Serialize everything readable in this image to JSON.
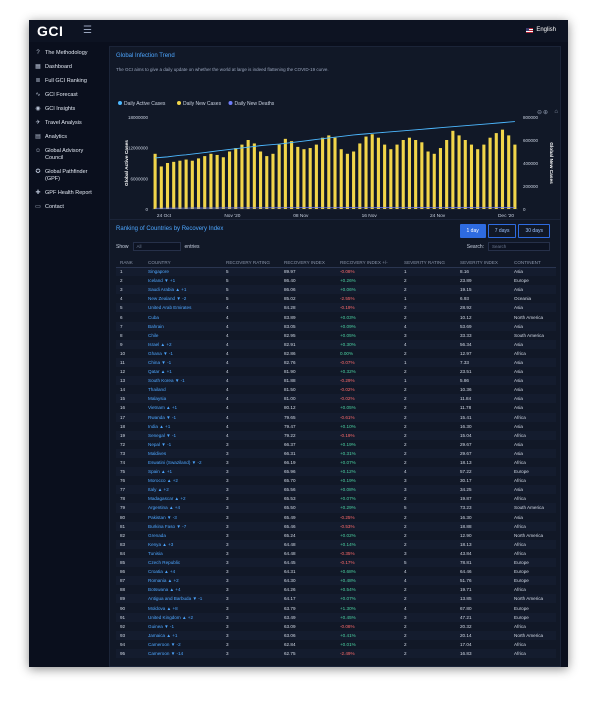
{
  "app": {
    "logo": "GCI",
    "language": "English"
  },
  "sidebar": {
    "items": [
      {
        "label": "The Methodology",
        "icon": "question-circle-icon",
        "glyph": "?"
      },
      {
        "label": "Dashboard",
        "icon": "dashboard-icon",
        "glyph": "▦"
      },
      {
        "label": "Full GCI Ranking",
        "icon": "list-icon",
        "glyph": "≣"
      },
      {
        "label": "GCI Forecast",
        "icon": "trend-icon",
        "glyph": "∿"
      },
      {
        "label": "GCI Insights",
        "icon": "eye-icon",
        "glyph": "◉"
      },
      {
        "label": "Travel Analysis",
        "icon": "plane-icon",
        "glyph": "✈"
      },
      {
        "label": "Analytics",
        "icon": "chart-icon",
        "glyph": "▤"
      },
      {
        "label": "Global Advisory Council",
        "icon": "users-icon",
        "glyph": "☺"
      },
      {
        "label": "Global Pathfinder (GPF)",
        "icon": "compass-icon",
        "glyph": "✪"
      },
      {
        "label": "GPF Health Report",
        "icon": "health-icon",
        "glyph": "✚"
      },
      {
        "label": "Contact",
        "icon": "chat-icon",
        "glyph": "▭"
      }
    ]
  },
  "trend": {
    "title": "Global Infection Trend",
    "subtitle": "The GCI aims to give a daily update on whether the world at large is indeed flattening the COVID-19 curve."
  },
  "chart_data": {
    "type": "bar",
    "title": "Global Infection Trend",
    "xlabel": "Date",
    "ylabel_left": "Global Active Cases",
    "ylabel_right": "Global New Cases",
    "x_ticks": [
      "24 Oct",
      "Nov '20",
      "08 Nov",
      "16 Nov",
      "24 Nov",
      "Dec '20"
    ],
    "y_left_ticks": [
      "18000000",
      "12000000",
      "6000000",
      "0"
    ],
    "y_right_ticks": [
      "800000",
      "600000",
      "400000",
      "200000",
      "0"
    ],
    "ylim_left": [
      0,
      18000000
    ],
    "ylim_right": [
      0,
      800000
    ],
    "legend": [
      "Daily Active Cases",
      "Daily New Cases",
      "Daily New Deaths"
    ],
    "legend_colors": [
      "#4db8ff",
      "#f1d54a",
      "#6f7dfb"
    ],
    "series": [
      {
        "name": "Daily New Cases",
        "type": "bar",
        "values": [
          480000,
          370000,
          400000,
          410000,
          420000,
          430000,
          420000,
          440000,
          460000,
          480000,
          470000,
          450000,
          500000,
          530000,
          560000,
          600000,
          570000,
          500000,
          460000,
          480000,
          560000,
          610000,
          590000,
          540000,
          520000,
          530000,
          560000,
          620000,
          640000,
          620000,
          520000,
          480000,
          500000,
          570000,
          630000,
          650000,
          620000,
          560000,
          520000,
          560000,
          600000,
          620000,
          600000,
          580000,
          500000,
          480000,
          530000,
          600000,
          680000,
          640000,
          600000,
          560000,
          520000,
          560000,
          620000,
          660000,
          690000,
          640000,
          560000
        ]
      },
      {
        "name": "Daily Active Cases",
        "type": "line",
        "values": [
          10000000,
          10100000,
          10200000,
          10350000,
          10500000,
          10600000,
          10750000,
          10900000,
          11050000,
          11200000,
          11350000,
          11500000,
          11650000,
          11800000,
          11950000,
          12100000,
          12250000,
          12400000,
          12500000,
          12600000,
          12700000,
          12850000,
          13000000,
          13150000,
          13300000,
          13450000,
          13600000,
          13750000,
          13900000,
          14050000,
          14200000,
          14350000,
          14500000,
          14600000,
          14700000,
          14800000,
          14900000,
          15000000,
          15100000,
          15200000,
          15300000,
          15400000,
          15500000,
          15600000,
          15700000,
          15800000,
          15900000,
          16000000,
          16100000,
          16200000,
          16300000,
          16400000,
          16500000,
          16600000,
          16700000,
          16800000,
          16900000,
          17000000,
          17100000
        ]
      },
      {
        "name": "Daily New Deaths",
        "type": "line",
        "values": [
          7000,
          7000,
          7500,
          7500,
          8000,
          8000,
          8500,
          8500,
          9000,
          9000,
          9000,
          9500,
          9500,
          10000,
          10000,
          10000,
          10500,
          10500,
          11000,
          11000,
          11000,
          11500,
          11500,
          11500,
          12000,
          12000,
          12000,
          12500,
          12500,
          12500,
          12000,
          12000,
          12000,
          12500,
          12500,
          12500,
          13000,
          13000,
          13000,
          12500,
          12500,
          12500,
          12000,
          12000,
          12000,
          12500,
          12500,
          12500,
          13000,
          13000,
          13000,
          13000,
          12500,
          12500,
          12500,
          13000,
          13000,
          13000,
          12500
        ]
      }
    ]
  },
  "ranking": {
    "title": "Ranking of Countries by Recovery Index",
    "ranges": [
      "1 day",
      "7 days",
      "30 days"
    ],
    "show_label": "Show",
    "show_value": "All",
    "entries_label": "entries",
    "search_label": "Search:",
    "search_placeholder": "Search",
    "columns": [
      "RANK",
      "COUNTRY",
      "RECOVERY RATING",
      "RECOVERY INDEX",
      "RECOVERY INDEX +/-",
      "SEVERITY RATING",
      "SEVERITY INDEX",
      "CONTINENT"
    ],
    "rows": [
      [
        "1",
        "Singapore",
        "5",
        "89.97",
        "-0.08%",
        "1",
        "8.16",
        "Asia"
      ],
      [
        "2",
        "Iceland ▼ +1",
        "5",
        "86.40",
        "+0.26%",
        "2",
        "23.89",
        "Europe"
      ],
      [
        "3",
        "Saudi Arabia ▲ +1",
        "5",
        "86.06",
        "+0.06%",
        "2",
        "19.15",
        "Asia"
      ],
      [
        "4",
        "New Zealand ▼ -2",
        "5",
        "85.02",
        "-2.55%",
        "1",
        "6.93",
        "Oceania"
      ],
      [
        "5",
        "United Arab Emirates",
        "4",
        "84.28",
        "-0.19%",
        "2",
        "28.92",
        "Asia"
      ],
      [
        "6",
        "Cuba",
        "4",
        "83.89",
        "+0.03%",
        "2",
        "10.12",
        "North America"
      ],
      [
        "7",
        "Bahrain",
        "4",
        "83.05",
        "+0.09%",
        "4",
        "53.69",
        "Asia"
      ],
      [
        "8",
        "Chile",
        "4",
        "82.95",
        "+0.05%",
        "3",
        "33.33",
        "South America"
      ],
      [
        "9",
        "Israel ▲ +2",
        "4",
        "82.91",
        "+0.30%",
        "4",
        "56.34",
        "Asia"
      ],
      [
        "10",
        "Ghana ▼ -1",
        "4",
        "82.86",
        "0.00%",
        "2",
        "12.97",
        "Africa"
      ],
      [
        "11",
        "China ▼ -1",
        "4",
        "82.76",
        "-0.07%",
        "1",
        "7.33",
        "Asia"
      ],
      [
        "12",
        "Qatar ▲ +1",
        "4",
        "81.90",
        "+0.32%",
        "2",
        "23.51",
        "Asia"
      ],
      [
        "13",
        "South Korea ▼ -1",
        "4",
        "81.88",
        "-0.29%",
        "1",
        "5.86",
        "Asia"
      ],
      [
        "14",
        "Thailand",
        "4",
        "81.50",
        "-0.02%",
        "2",
        "10.36",
        "Asia"
      ],
      [
        "15",
        "Malaysia",
        "4",
        "81.00",
        "-0.02%",
        "2",
        "11.84",
        "Asia"
      ],
      [
        "16",
        "Vietnam ▲ +1",
        "4",
        "80.12",
        "+0.05%",
        "2",
        "11.78",
        "Asia"
      ],
      [
        "17",
        "Rwanda ▼ -1",
        "4",
        "79.65",
        "-0.61%",
        "2",
        "15.41",
        "Africa"
      ],
      [
        "18",
        "India ▲ +1",
        "4",
        "79.47",
        "+0.10%",
        "2",
        "16.30",
        "Asia"
      ],
      [
        "19",
        "Senegal ▼ -1",
        "4",
        "79.22",
        "-0.19%",
        "2",
        "15.04",
        "Africa"
      ],
      [
        "72",
        "Nepal ▼ -1",
        "3",
        "66.37",
        "+0.19%",
        "2",
        "29.67",
        "Asia"
      ],
      [
        "73",
        "Maldives",
        "3",
        "66.31",
        "+0.31%",
        "2",
        "29.67",
        "Asia"
      ],
      [
        "74",
        "Eswatini (Swaziland) ▼ -2",
        "3",
        "66.19",
        "+0.07%",
        "2",
        "18.13",
        "Africa"
      ],
      [
        "75",
        "Spain ▲ +1",
        "3",
        "65.96",
        "+0.12%",
        "4",
        "57.22",
        "Europe"
      ],
      [
        "76",
        "Morocco ▲ +2",
        "3",
        "65.70",
        "+0.19%",
        "3",
        "30.17",
        "Africa"
      ],
      [
        "77",
        "Italy ▲ +2",
        "3",
        "65.56",
        "+0.08%",
        "3",
        "34.25",
        "Asia"
      ],
      [
        "78",
        "Madagascar ▲ +2",
        "3",
        "65.53",
        "+0.07%",
        "2",
        "19.87",
        "Africa"
      ],
      [
        "79",
        "Argentina ▲ +4",
        "3",
        "65.50",
        "+0.29%",
        "5",
        "73.23",
        "South America"
      ],
      [
        "80",
        "Pakistan ▼ -3",
        "3",
        "65.49",
        "-0.25%",
        "2",
        "16.30",
        "Asia"
      ],
      [
        "81",
        "Burkina Faso ▼ -7",
        "3",
        "65.46",
        "-0.53%",
        "2",
        "18.88",
        "Africa"
      ],
      [
        "82",
        "Grenada",
        "3",
        "65.24",
        "+0.02%",
        "2",
        "12.90",
        "North America"
      ],
      [
        "83",
        "Kenya ▲ +3",
        "3",
        "64.48",
        "+0.14%",
        "2",
        "18.13",
        "Africa"
      ],
      [
        "84",
        "Tunisia",
        "3",
        "64.48",
        "-0.35%",
        "3",
        "43.84",
        "Africa"
      ],
      [
        "85",
        "Czech Republic",
        "3",
        "64.45",
        "-0.17%",
        "5",
        "78.81",
        "Europe"
      ],
      [
        "86",
        "Croatia ▲ +4",
        "3",
        "64.31",
        "+0.68%",
        "4",
        "64.46",
        "Europe"
      ],
      [
        "87",
        "Romania ▲ +2",
        "3",
        "64.30",
        "+0.48%",
        "4",
        "51.76",
        "Europe"
      ],
      [
        "88",
        "Botswana ▲ +4",
        "3",
        "64.26",
        "+0.54%",
        "2",
        "19.71",
        "Africa"
      ],
      [
        "89",
        "Antigua and Barbuda ▼ -1",
        "3",
        "64.17",
        "+0.07%",
        "2",
        "13.85",
        "North America"
      ],
      [
        "90",
        "Moldova ▲ +8",
        "3",
        "63.79",
        "+1.30%",
        "4",
        "67.80",
        "Europe"
      ],
      [
        "91",
        "United Kingdom ▲ +2",
        "3",
        "63.49",
        "+0.45%",
        "3",
        "47.21",
        "Europe"
      ],
      [
        "92",
        "Guinea ▼ -1",
        "3",
        "63.09",
        "-0.08%",
        "2",
        "20.32",
        "Africa"
      ],
      [
        "93",
        "Jamaica ▲ +1",
        "3",
        "63.06",
        "+0.41%",
        "2",
        "20.14",
        "North America"
      ],
      [
        "94",
        "Cameroon ▼ -2",
        "3",
        "62.84",
        "+0.01%",
        "2",
        "17.04",
        "Africa"
      ],
      [
        "95",
        "Cameroon ▼ -14",
        "3",
        "62.75",
        "-2.49%",
        "2",
        "16.83",
        "Africa"
      ]
    ]
  }
}
